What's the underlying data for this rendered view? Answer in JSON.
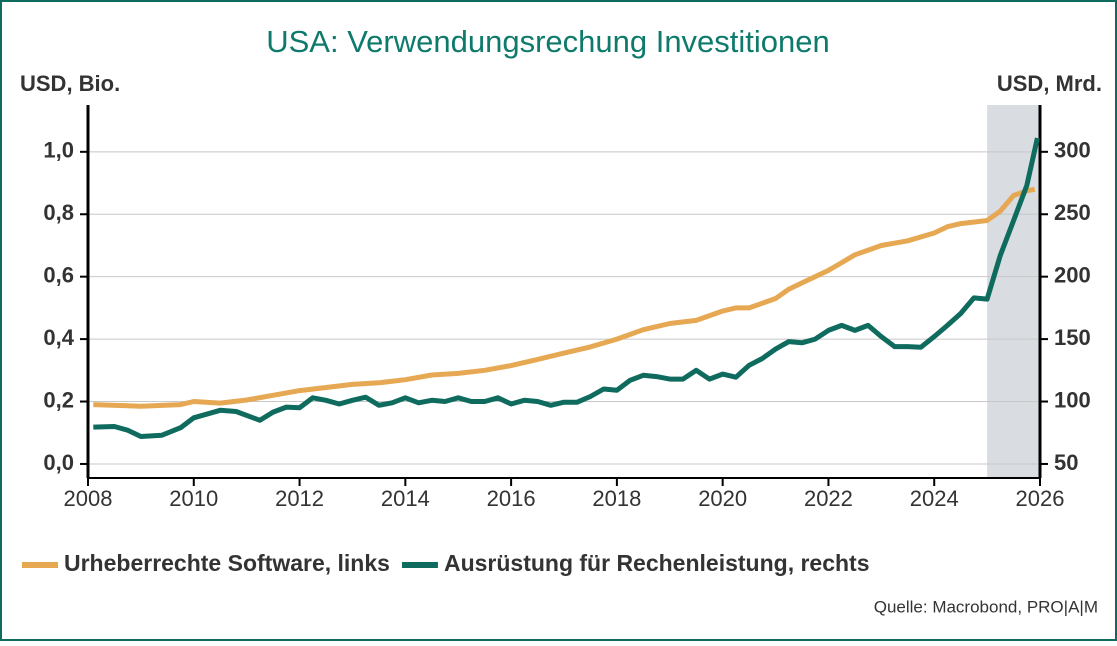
{
  "chart_data": {
    "type": "line",
    "title": "USA: Verwendungsrechung Investitionen",
    "y_label": "USD, Bio.",
    "y2_label": "USD, Mrd.",
    "source": "Quelle: Macrobond, PRO|A|M",
    "xlim": [
      2008,
      2026
    ],
    "xticks": [
      2008,
      2010,
      2012,
      2014,
      2016,
      2018,
      2020,
      2022,
      2024,
      2026
    ],
    "ylim": [
      -0.045,
      1.15
    ],
    "yticks": [
      {
        "value": 0,
        "label": "0,0"
      },
      {
        "value": 0.2,
        "label": "0,2"
      },
      {
        "value": 0.4,
        "label": "0,4"
      },
      {
        "value": 0.6,
        "label": "0,6"
      },
      {
        "value": 0.8,
        "label": "0,8"
      },
      {
        "value": 1.0,
        "label": "1,0"
      }
    ],
    "y2lim": [
      38.75,
      337.5
    ],
    "y2ticks": [
      50,
      100,
      150,
      200,
      250,
      300
    ],
    "grid": true,
    "shaded_x": [
      2025,
      2026
    ],
    "series": [
      {
        "name": "Urheberrechte Software, links",
        "color": "#e6a852",
        "axis": "y",
        "x": [
          2008.1,
          2009,
          2009.75,
          2010,
          2010.5,
          2011,
          2011.5,
          2012,
          2012.5,
          2013,
          2013.5,
          2014,
          2014.5,
          2015,
          2015.5,
          2016,
          2016.5,
          2017,
          2017.5,
          2018,
          2018.5,
          2019,
          2019.5,
          2020,
          2020.25,
          2020.5,
          2021,
          2021.25,
          2021.5,
          2022,
          2022.25,
          2022.5,
          2023,
          2023.5,
          2024,
          2024.25,
          2024.5,
          2025,
          2025.25,
          2025.5,
          2025.75,
          2025.9
        ],
        "values": [
          0.19,
          0.185,
          0.19,
          0.2,
          0.195,
          0.205,
          0.22,
          0.235,
          0.245,
          0.255,
          0.26,
          0.27,
          0.285,
          0.29,
          0.3,
          0.315,
          0.335,
          0.355,
          0.375,
          0.4,
          0.43,
          0.45,
          0.46,
          0.49,
          0.5,
          0.5,
          0.53,
          0.56,
          0.58,
          0.62,
          0.645,
          0.67,
          0.7,
          0.715,
          0.74,
          0.76,
          0.77,
          0.78,
          0.81,
          0.86,
          0.875,
          0.88
        ]
      },
      {
        "name": "Ausrüstung für Rechenleistung, rechts",
        "color": "#0e6b5e",
        "axis": "y2",
        "x": [
          2008.1,
          2008.5,
          2008.75,
          2009,
          2009.4,
          2009.75,
          2010,
          2010.5,
          2010.8,
          2011.25,
          2011.5,
          2011.75,
          2012,
          2012.25,
          2012.5,
          2012.75,
          2013,
          2013.25,
          2013.5,
          2013.75,
          2014,
          2014.25,
          2014.5,
          2014.75,
          2015,
          2015.25,
          2015.5,
          2015.75,
          2016,
          2016.25,
          2016.5,
          2016.75,
          2017,
          2017.25,
          2017.5,
          2017.75,
          2018,
          2018.25,
          2018.5,
          2018.75,
          2019,
          2019.25,
          2019.5,
          2019.75,
          2020,
          2020.25,
          2020.5,
          2020.75,
          2021,
          2021.25,
          2021.5,
          2021.75,
          2022,
          2022.25,
          2022.5,
          2022.75,
          2023,
          2023.25,
          2023.5,
          2023.75,
          2024,
          2024.25,
          2024.5,
          2024.75,
          2025,
          2025.25,
          2025.5,
          2025.75,
          2025.95
        ],
        "values": [
          79.5,
          80,
          77,
          72,
          73,
          79,
          87,
          93,
          92,
          85,
          91.5,
          95.5,
          95,
          103,
          101,
          98,
          101,
          103.5,
          97,
          99,
          103,
          99,
          101,
          100,
          103,
          100,
          100,
          103,
          98,
          101,
          100,
          97,
          99.5,
          99.5,
          104,
          110,
          109,
          117,
          121,
          120,
          118,
          118,
          125,
          118,
          122,
          119.5,
          129,
          134.5,
          142,
          148,
          147,
          150,
          157,
          161,
          157,
          161,
          152,
          144,
          144,
          143.5,
          152,
          161,
          170.5,
          183,
          182,
          217,
          245,
          273,
          311
        ]
      }
    ]
  }
}
